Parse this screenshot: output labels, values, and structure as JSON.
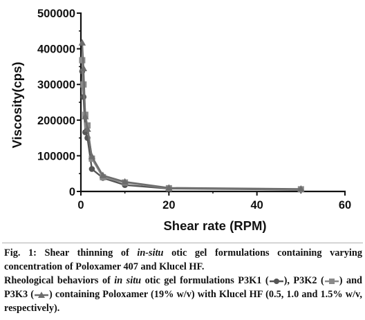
{
  "chart_data": {
    "type": "line",
    "xlabel": "Shear  rate (RPM)",
    "ylabel": "Viscosity(cps)",
    "xlim": [
      0,
      60
    ],
    "ylim": [
      0,
      500000
    ],
    "x_ticks": [
      "0",
      "20",
      "40",
      "60"
    ],
    "y_ticks": [
      "0",
      "100000",
      "200000",
      "300000",
      "400000",
      "500000"
    ],
    "grid": false,
    "series": [
      {
        "name": "P3K1",
        "marker": "circle",
        "color": "#555555",
        "x": [
          0.3,
          0.6,
          1,
          1.5,
          2.5,
          5,
          10,
          20,
          50
        ],
        "y": [
          337000,
          265000,
          166000,
          150000,
          63000,
          38000,
          18000,
          8000,
          5000
        ]
      },
      {
        "name": "P3K2",
        "marker": "square",
        "color": "#8a8a8a",
        "x": [
          0.3,
          0.6,
          1,
          1.5,
          2.5,
          5,
          10,
          20,
          50
        ],
        "y": [
          368000,
          300000,
          215000,
          185000,
          92000,
          40000,
          25000,
          9000,
          6000
        ]
      },
      {
        "name": "P3K3",
        "marker": "triangle",
        "color": "#6d6d6d",
        "x": [
          0.3,
          0.6,
          1,
          1.5,
          2.5,
          5,
          10,
          20,
          50
        ],
        "y": [
          417000,
          345000,
          210000,
          175000,
          98000,
          45000,
          27000,
          10000,
          7000
        ]
      }
    ]
  },
  "caption": {
    "line1_a": "Fig. 1: Shear thinning of ",
    "line1_italic": "in-situ",
    "line1_b": " otic gel formulations containing varying concentration of Poloxamer 407 and Klucel HF.",
    "line2_a": "Rheological behaviors of ",
    "line2_italic": "in situ",
    "line2_b": " otic gel formulations P3K1 (",
    "line2_c": "), P3K2 (",
    "line2_d": ") and P3K3 (",
    "line2_e": ") containing Poloxamer (19% w/v) with Klucel HF (0.5, 1.0 and 1.5% w/v, respectively)."
  }
}
